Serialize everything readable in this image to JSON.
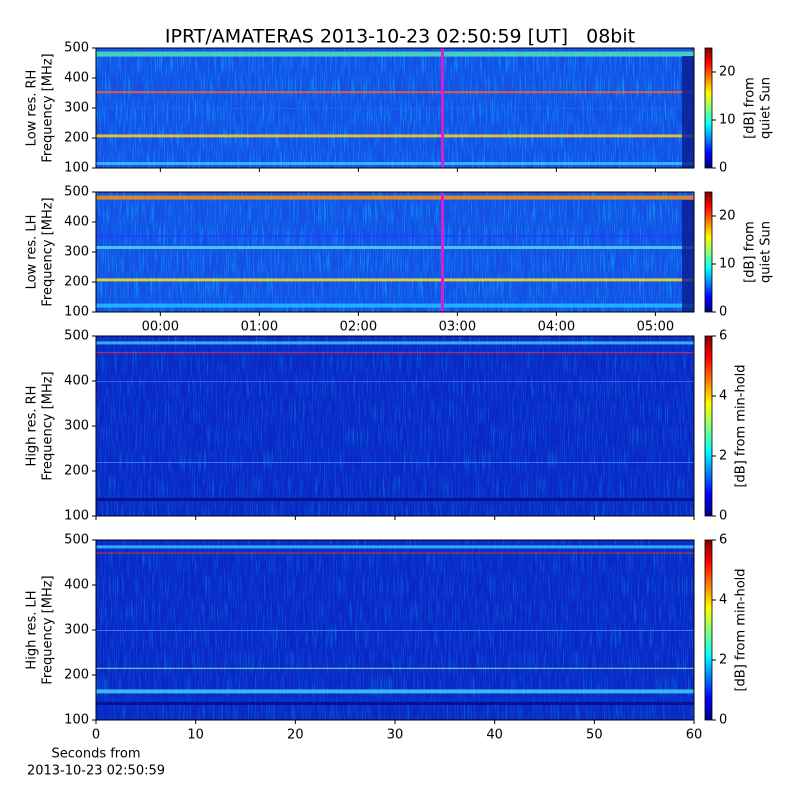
{
  "title": "IPRT/AMATERAS 2013-10-23 02:50:59 [UT]   08bit",
  "chart_data": [
    {
      "type": "heatmap",
      "ylabel": [
        "Low res. RH",
        "Frequency [MHz]"
      ],
      "ylim": [
        100,
        500
      ],
      "yticks": [
        100,
        200,
        300,
        400,
        500
      ],
      "xlim": [
        -0.65,
        5.39
      ],
      "xticks": [
        {
          "value": 0,
          "label": "00:00"
        },
        {
          "value": 1,
          "label": "01:00"
        },
        {
          "value": 2,
          "label": "02:00"
        },
        {
          "value": 3,
          "label": "03:00"
        },
        {
          "value": 4,
          "label": "04:00"
        },
        {
          "value": 5,
          "label": "05:00"
        }
      ],
      "show_xtick_labels": false,
      "marker_x": 2.85,
      "marker_color": "#d020d8",
      "colorbar": {
        "label": [
          "[dB] from",
          "quiet Sun"
        ],
        "lim": [
          0,
          25
        ],
        "ticks": [
          0,
          10,
          20
        ]
      }
    },
    {
      "type": "heatmap",
      "ylabel": [
        "Low res. LH",
        "Frequency [MHz]"
      ],
      "ylim": [
        100,
        500
      ],
      "yticks": [
        100,
        200,
        300,
        400,
        500
      ],
      "xlim": [
        -0.65,
        5.39
      ],
      "xticks": [
        {
          "value": 0,
          "label": "00:00"
        },
        {
          "value": 1,
          "label": "01:00"
        },
        {
          "value": 2,
          "label": "02:00"
        },
        {
          "value": 3,
          "label": "03:00"
        },
        {
          "value": 4,
          "label": "04:00"
        },
        {
          "value": 5,
          "label": "05:00"
        }
      ],
      "show_xtick_labels": true,
      "marker_x": 2.85,
      "marker_color": "#d020d8",
      "colorbar": {
        "label": [
          "[dB] from",
          "quiet Sun"
        ],
        "lim": [
          0,
          25
        ],
        "ticks": [
          0,
          10,
          20
        ]
      }
    },
    {
      "type": "heatmap",
      "ylabel": [
        "High res. RH",
        "Frequency [MHz]"
      ],
      "ylim": [
        100,
        500
      ],
      "yticks": [
        100,
        200,
        300,
        400,
        500
      ],
      "xlim": [
        0,
        60
      ],
      "xticks": [
        0,
        10,
        20,
        30,
        40,
        50,
        60
      ],
      "show_xtick_labels": false,
      "colorbar": {
        "label": [
          "[dB] from min-hold"
        ],
        "lim": [
          0,
          6
        ],
        "ticks": [
          0,
          2,
          4,
          6
        ]
      }
    },
    {
      "type": "heatmap",
      "ylabel": [
        "High res. LH",
        "Frequency [MHz]"
      ],
      "ylim": [
        100,
        500
      ],
      "yticks": [
        100,
        200,
        300,
        400,
        500
      ],
      "xlim": [
        0,
        60
      ],
      "xticks": [
        0,
        10,
        20,
        30,
        40,
        50,
        60
      ],
      "show_xtick_labels": true,
      "xlabel": [
        "Seconds from",
        "2013-10-23 02:50:59"
      ],
      "colorbar": {
        "label": [
          "[dB] from min-hold"
        ],
        "lim": [
          0,
          6
        ],
        "ticks": [
          0,
          2,
          4,
          6
        ]
      }
    }
  ]
}
